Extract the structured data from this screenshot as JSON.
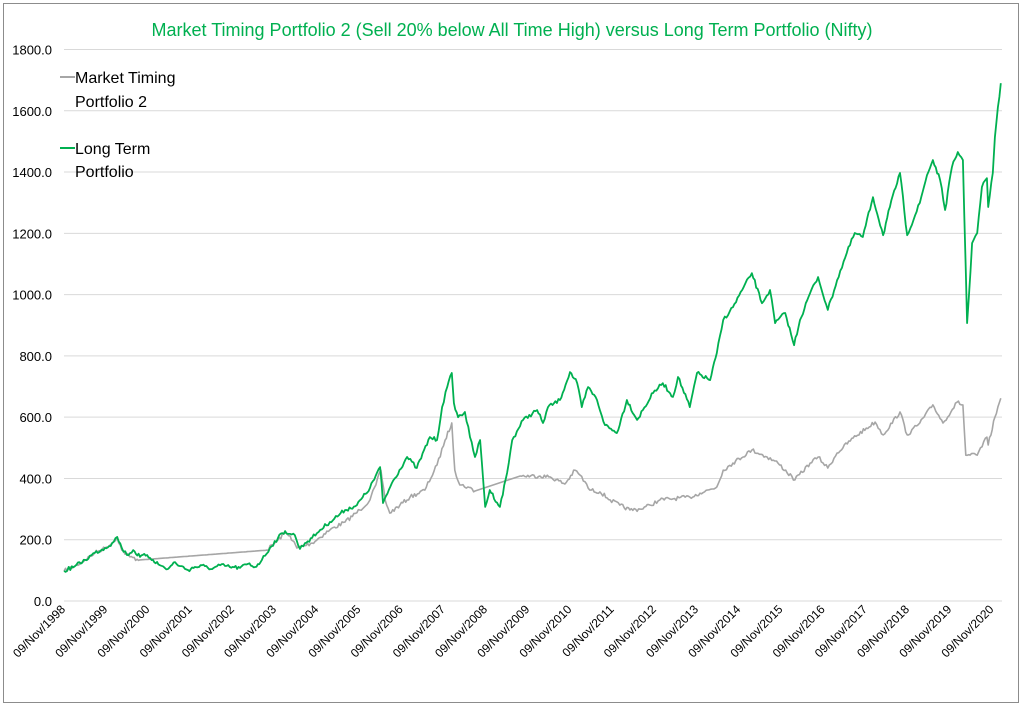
{
  "chart_data": {
    "type": "line",
    "title": "Market Timing Portfolio 2 (Sell 20% below All Time High) versus Long Term Portfolio (Nifty)",
    "xlabel": "",
    "ylabel": "",
    "ylim": [
      0,
      1800
    ],
    "y_ticks": [
      "0.0",
      "200.0",
      "400.0",
      "600.0",
      "800.0",
      "1000.0",
      "1200.0",
      "1400.0",
      "1600.0",
      "1800.0"
    ],
    "x_ticks": [
      "09/Nov/1998",
      "09/Nov/1999",
      "09/Nov/2000",
      "09/Nov/2001",
      "09/Nov/2002",
      "09/Nov/2003",
      "09/Nov/2004",
      "09/Nov/2005",
      "09/Nov/2006",
      "09/Nov/2007",
      "09/Nov/2008",
      "09/Nov/2009",
      "09/Nov/2010",
      "09/Nov/2011",
      "09/Nov/2012",
      "09/Nov/2013",
      "09/Nov/2014",
      "09/Nov/2015",
      "09/Nov/2016",
      "09/Nov/2017",
      "09/Nov/2018",
      "09/Nov/2019",
      "09/Nov/2020"
    ],
    "grid": "horizontal",
    "legend_position": "top-left",
    "series": [
      {
        "name": "Market Timing Portfolio 2",
        "color": "#a6a6a6",
        "points": [
          [
            1998.86,
            98
          ],
          [
            1999.12,
            114
          ],
          [
            1999.36,
            134
          ],
          [
            1999.59,
            157
          ],
          [
            1999.83,
            173
          ],
          [
            2000.0,
            189
          ],
          [
            2000.12,
            209
          ],
          [
            2000.23,
            166
          ],
          [
            2000.42,
            144
          ],
          [
            2000.66,
            134
          ],
          [
            2003.67,
            166
          ],
          [
            2003.93,
            199
          ],
          [
            2004.1,
            222
          ],
          [
            2004.22,
            212
          ],
          [
            2004.38,
            173
          ],
          [
            2004.74,
            189
          ],
          [
            2005.16,
            232
          ],
          [
            2005.52,
            258
          ],
          [
            2005.87,
            297
          ],
          [
            2006.11,
            330
          ],
          [
            2006.25,
            379
          ],
          [
            2006.37,
            427
          ],
          [
            2006.47,
            330
          ],
          [
            2006.58,
            287
          ],
          [
            2006.82,
            313
          ],
          [
            2007.06,
            339
          ],
          [
            2007.41,
            362
          ],
          [
            2007.7,
            444
          ],
          [
            2007.89,
            525
          ],
          [
            2008.05,
            581
          ],
          [
            2008.12,
            427
          ],
          [
            2008.24,
            379
          ],
          [
            2008.43,
            372
          ],
          [
            2008.6,
            359
          ],
          [
            2009.67,
            408
          ],
          [
            2010.14,
            408
          ],
          [
            2010.38,
            405
          ],
          [
            2010.73,
            382
          ],
          [
            2010.97,
            427
          ],
          [
            2011.09,
            411
          ],
          [
            2011.32,
            362
          ],
          [
            2011.56,
            356
          ],
          [
            2011.8,
            330
          ],
          [
            2012.03,
            313
          ],
          [
            2012.27,
            297
          ],
          [
            2012.51,
            300
          ],
          [
            2012.75,
            313
          ],
          [
            2012.98,
            330
          ],
          [
            2013.22,
            333
          ],
          [
            2013.69,
            339
          ],
          [
            2013.93,
            352
          ],
          [
            2014.33,
            372
          ],
          [
            2014.48,
            427
          ],
          [
            2014.71,
            450
          ],
          [
            2015.16,
            493
          ],
          [
            2015.52,
            470
          ],
          [
            2015.78,
            450
          ],
          [
            2016.18,
            395
          ],
          [
            2016.54,
            450
          ],
          [
            2016.73,
            470
          ],
          [
            2016.96,
            434
          ],
          [
            2017.18,
            483
          ],
          [
            2017.56,
            532
          ],
          [
            2018.08,
            584
          ],
          [
            2018.27,
            542
          ],
          [
            2018.67,
            617
          ],
          [
            2018.84,
            542
          ],
          [
            2019.14,
            581
          ],
          [
            2019.45,
            640
          ],
          [
            2019.69,
            581
          ],
          [
            2020.02,
            649
          ],
          [
            2020.16,
            640
          ],
          [
            2020.23,
            476
          ],
          [
            2020.5,
            476
          ],
          [
            2020.73,
            535
          ],
          [
            2020.76,
            509
          ],
          [
            2020.92,
            600
          ],
          [
            2021.06,
            662
          ]
        ]
      },
      {
        "name": "Long Term Portfolio",
        "color": "#00b050",
        "points": [
          [
            1998.86,
            98
          ],
          [
            1999.12,
            114
          ],
          [
            1999.36,
            134
          ],
          [
            1999.59,
            157
          ],
          [
            1999.83,
            173
          ],
          [
            2000.0,
            189
          ],
          [
            2000.12,
            209
          ],
          [
            2000.23,
            173
          ],
          [
            2000.35,
            150
          ],
          [
            2000.5,
            166
          ],
          [
            2000.66,
            144
          ],
          [
            2000.83,
            150
          ],
          [
            2000.97,
            134
          ],
          [
            2001.13,
            117
          ],
          [
            2001.32,
            104
          ],
          [
            2001.49,
            127
          ],
          [
            2001.61,
            114
          ],
          [
            2001.8,
            101
          ],
          [
            2001.96,
            111
          ],
          [
            2002.2,
            114
          ],
          [
            2002.37,
            104
          ],
          [
            2002.56,
            117
          ],
          [
            2002.79,
            111
          ],
          [
            2003.03,
            108
          ],
          [
            2003.22,
            121
          ],
          [
            2003.39,
            111
          ],
          [
            2003.55,
            134
          ],
          [
            2003.74,
            173
          ],
          [
            2003.93,
            206
          ],
          [
            2004.1,
            228
          ],
          [
            2004.22,
            219
          ],
          [
            2004.33,
            215
          ],
          [
            2004.45,
            170
          ],
          [
            2004.57,
            189
          ],
          [
            2004.74,
            206
          ],
          [
            2004.93,
            232
          ],
          [
            2005.16,
            258
          ],
          [
            2005.52,
            297
          ],
          [
            2005.8,
            313
          ],
          [
            2006.11,
            369
          ],
          [
            2006.35,
            437
          ],
          [
            2006.42,
            320
          ],
          [
            2006.63,
            385
          ],
          [
            2006.99,
            470
          ],
          [
            2007.22,
            434
          ],
          [
            2007.53,
            535
          ],
          [
            2007.7,
            525
          ],
          [
            2007.82,
            633
          ],
          [
            2007.94,
            698
          ],
          [
            2008.05,
            744
          ],
          [
            2008.1,
            646
          ],
          [
            2008.2,
            600
          ],
          [
            2008.36,
            617
          ],
          [
            2008.48,
            535
          ],
          [
            2008.6,
            470
          ],
          [
            2008.72,
            525
          ],
          [
            2008.84,
            307
          ],
          [
            2008.95,
            362
          ],
          [
            2009.19,
            307
          ],
          [
            2009.36,
            418
          ],
          [
            2009.48,
            525
          ],
          [
            2009.74,
            591
          ],
          [
            2010.07,
            623
          ],
          [
            2010.21,
            581
          ],
          [
            2010.33,
            633
          ],
          [
            2010.61,
            656
          ],
          [
            2010.85,
            747
          ],
          [
            2011.02,
            711
          ],
          [
            2011.13,
            633
          ],
          [
            2011.28,
            698
          ],
          [
            2011.49,
            656
          ],
          [
            2011.68,
            574
          ],
          [
            2011.96,
            548
          ],
          [
            2012.2,
            656
          ],
          [
            2012.44,
            591
          ],
          [
            2012.82,
            679
          ],
          [
            2013.05,
            711
          ],
          [
            2013.29,
            666
          ],
          [
            2013.41,
            731
          ],
          [
            2013.69,
            633
          ],
          [
            2013.86,
            744
          ],
          [
            2014.17,
            721
          ],
          [
            2014.33,
            809
          ],
          [
            2014.48,
            917
          ],
          [
            2014.71,
            959
          ],
          [
            2014.93,
            1015
          ],
          [
            2015.16,
            1070
          ],
          [
            2015.4,
            972
          ],
          [
            2015.59,
            1015
          ],
          [
            2015.71,
            907
          ],
          [
            2015.95,
            940
          ],
          [
            2016.16,
            835
          ],
          [
            2016.3,
            917
          ],
          [
            2016.54,
            1005
          ],
          [
            2016.73,
            1057
          ],
          [
            2016.96,
            950
          ],
          [
            2017.18,
            1047
          ],
          [
            2017.41,
            1136
          ],
          [
            2017.6,
            1201
          ],
          [
            2017.79,
            1188
          ],
          [
            2018.03,
            1318
          ],
          [
            2018.27,
            1194
          ],
          [
            2018.43,
            1286
          ],
          [
            2018.67,
            1397
          ],
          [
            2018.84,
            1194
          ],
          [
            2019.14,
            1299
          ],
          [
            2019.31,
            1390
          ],
          [
            2019.45,
            1439
          ],
          [
            2019.62,
            1374
          ],
          [
            2019.74,
            1276
          ],
          [
            2019.9,
            1416
          ],
          [
            2020.04,
            1465
          ],
          [
            2020.16,
            1439
          ],
          [
            2020.26,
            907
          ],
          [
            2020.38,
            1168
          ],
          [
            2020.5,
            1201
          ],
          [
            2020.61,
            1351
          ],
          [
            2020.73,
            1380
          ],
          [
            2020.76,
            1286
          ],
          [
            2020.87,
            1397
          ],
          [
            2020.92,
            1514
          ],
          [
            2020.99,
            1612
          ],
          [
            2021.06,
            1690
          ]
        ]
      }
    ]
  }
}
